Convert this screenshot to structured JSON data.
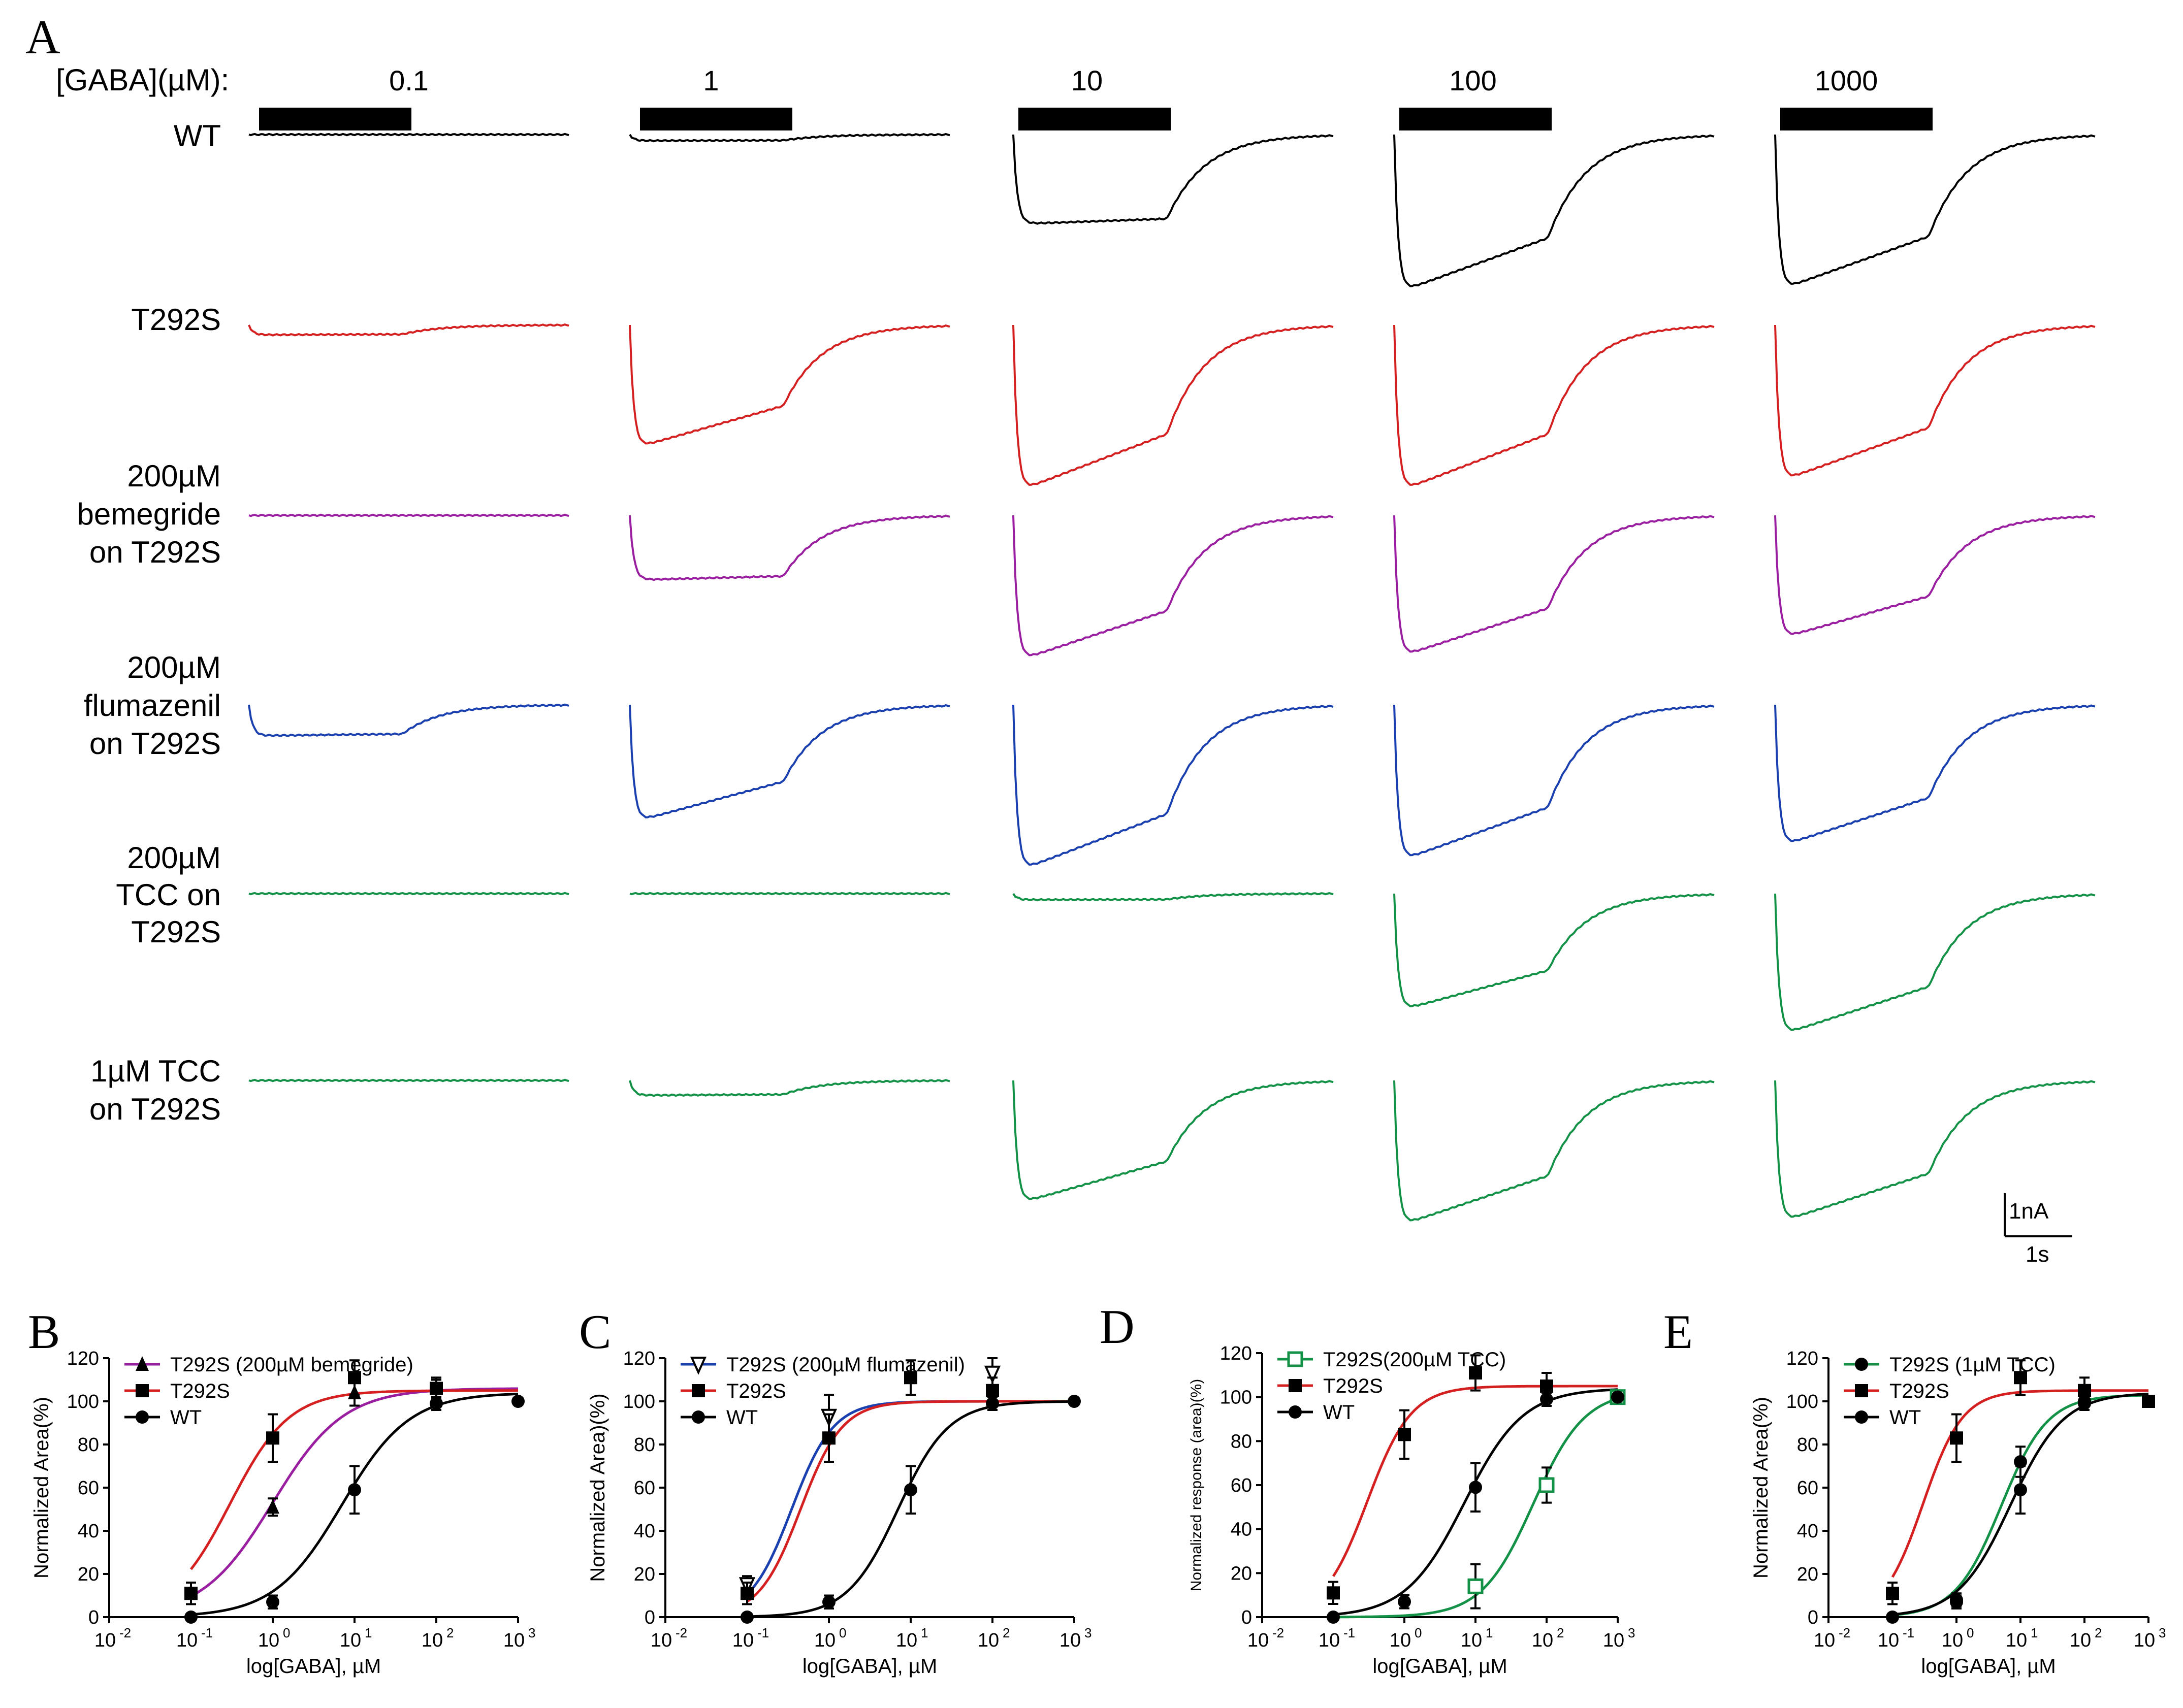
{
  "figure": {
    "panel_letters": {
      "A": "A",
      "B": "B",
      "C": "C",
      "D": "D",
      "E": "E"
    },
    "conc_prefix": "[GABA](µM):",
    "concentrations": [
      "0.1",
      "1",
      "10",
      "100",
      "1000"
    ],
    "row_labels": [
      [
        "WT"
      ],
      [
        "T292S"
      ],
      [
        "200µM",
        "bemegride",
        "on T292S"
      ],
      [
        "200µM",
        "flumazenil",
        "on T292S"
      ],
      [
        "200µM",
        "TCC on",
        "T292S"
      ],
      [
        "1µM TCC",
        "on T292S"
      ]
    ],
    "row_colors": [
      "#000000",
      "#d42020",
      "#9a1ea0",
      "#1a3fae",
      "#139247",
      "#139247"
    ],
    "trace_amplitudes": [
      [
        0.0,
        0.05,
        0.72,
        1.28,
        1.26
      ],
      [
        0.08,
        1.0,
        1.35,
        1.35,
        1.27
      ],
      [
        0.0,
        0.52,
        1.18,
        1.15,
        1.0
      ],
      [
        0.25,
        0.95,
        1.35,
        1.27,
        1.15
      ],
      [
        0.0,
        0.0,
        0.05,
        0.95,
        1.15
      ],
      [
        0.0,
        0.12,
        1.0,
        1.18,
        1.15
      ]
    ],
    "scale_bar": {
      "current": "1nA",
      "time": "1s"
    }
  },
  "chart_data": [
    {
      "panel": "B",
      "type": "scatter",
      "xlabel": "log[GABA], µM",
      "ylabel": "Normalized  Area(%)",
      "xlim": [
        0.01,
        1000
      ],
      "ylim": [
        0,
        120
      ],
      "xscale": "log",
      "ytick_labels": [
        "0",
        "20",
        "40",
        "60",
        "80",
        "100",
        "120"
      ],
      "series": [
        {
          "name": "T292S (200µM bemegride)",
          "marker": "triangle",
          "color": "#9a1ea0",
          "x": [
            1,
            10,
            100
          ],
          "y": [
            51,
            104,
            106
          ],
          "err": [
            4,
            6,
            4
          ],
          "ec50": 1.0,
          "hill": 1.0,
          "top": 106
        },
        {
          "name": "T292S",
          "marker": "square",
          "color": "#d42020",
          "x": [
            0.1,
            1,
            10,
            100
          ],
          "y": [
            11,
            83,
            111,
            106
          ],
          "err": [
            5,
            11,
            8,
            5
          ],
          "ec50": 0.3,
          "hill": 1.2,
          "top": 105
        },
        {
          "name": "WT",
          "marker": "circle",
          "color": "#000000",
          "x": [
            0.1,
            1,
            10,
            100,
            1000
          ],
          "y": [
            0,
            7,
            59,
            99,
            100
          ],
          "err": [
            1,
            3,
            11,
            3,
            1
          ],
          "ec50": 7,
          "hill": 1.05,
          "top": 104
        }
      ]
    },
    {
      "panel": "C",
      "type": "scatter",
      "xlabel": "log[GABA], µM",
      "ylabel": "Normalized  Area)(%)",
      "xlim": [
        0.01,
        1000
      ],
      "ylim": [
        0,
        120
      ],
      "xscale": "log",
      "ytick_labels": [
        "0",
        "20",
        "40",
        "60",
        "80",
        "100",
        "120"
      ],
      "series": [
        {
          "name": "T292S (200µM flumazenil)",
          "marker": "triangle-down-open",
          "color": "#1a3fae",
          "x": [
            0.1,
            1,
            100
          ],
          "y": [
            15,
            93,
            113
          ],
          "err": [
            4,
            10,
            7
          ],
          "ec50": 0.35,
          "hill": 1.7,
          "top": 100
        },
        {
          "name": "T292S",
          "marker": "square",
          "color": "#d42020",
          "x": [
            0.1,
            1,
            10,
            100
          ],
          "y": [
            11,
            83,
            111,
            105
          ],
          "err": [
            5,
            11,
            8,
            6
          ],
          "ec50": 0.45,
          "hill": 1.7,
          "top": 100
        },
        {
          "name": "WT",
          "marker": "circle",
          "color": "#000000",
          "x": [
            0.1,
            1,
            10,
            100,
            1000
          ],
          "y": [
            0,
            7,
            59,
            99,
            100
          ],
          "err": [
            1,
            3,
            11,
            3,
            1
          ],
          "ec50": 7,
          "hill": 1.4,
          "top": 100
        }
      ]
    },
    {
      "panel": "D",
      "type": "scatter",
      "xlabel": "log[GABA], µM",
      "ylabel": "Normalized  response (area)(%)",
      "xlim": [
        0.01,
        1000
      ],
      "ylim": [
        0,
        120
      ],
      "xscale": "log",
      "ytick_labels": [
        "0",
        "20",
        "40",
        "60",
        "80",
        "100",
        "120"
      ],
      "series": [
        {
          "name": "T292S(200µM TCC)",
          "marker": "square-open",
          "color": "#139247",
          "x": [
            10,
            100,
            1000
          ],
          "y": [
            14,
            60,
            100
          ],
          "err": [
            10,
            8,
            2
          ],
          "ec50": 65,
          "hill": 1.2,
          "top": 103
        },
        {
          "name": "T292S",
          "marker": "square",
          "color": "#d42020",
          "x": [
            0.1,
            1,
            10,
            100
          ],
          "y": [
            11,
            83,
            111,
            105
          ],
          "err": [
            5,
            11,
            8,
            6
          ],
          "ec50": 0.3,
          "hill": 1.4,
          "top": 105
        },
        {
          "name": "WT",
          "marker": "circle",
          "color": "#000000",
          "x": [
            0.1,
            1,
            10,
            100,
            1000
          ],
          "y": [
            0,
            7,
            59,
            99,
            100
          ],
          "err": [
            1,
            3,
            11,
            3,
            1
          ],
          "ec50": 7,
          "hill": 1.05,
          "top": 104
        }
      ]
    },
    {
      "panel": "E",
      "type": "scatter",
      "xlabel": "log[GABA], µM",
      "ylabel": "Normalized  Area(%)",
      "xlim": [
        0.01,
        1000
      ],
      "ylim": [
        0,
        120
      ],
      "xscale": "log",
      "ytick_labels": [
        "0",
        "20",
        "40",
        "60",
        "80",
        "100",
        "120"
      ],
      "series": [
        {
          "name": "T292S (1µM TCC)",
          "marker": "circle",
          "color": "#139247",
          "x": [
            1,
            10,
            100
          ],
          "y": [
            8,
            72,
            100
          ],
          "err": [
            3,
            7,
            4
          ],
          "ec50": 5,
          "hill": 1.2,
          "top": 103
        },
        {
          "name": "T292S",
          "marker": "square",
          "color": "#d42020",
          "x": [
            0.1,
            1,
            10,
            100,
            1000
          ],
          "y": [
            11,
            83,
            111,
            105,
            100
          ],
          "err": [
            5,
            11,
            8,
            6,
            1
          ],
          "ec50": 0.3,
          "hill": 1.4,
          "top": 105
        },
        {
          "name": "WT",
          "marker": "circle",
          "color": "#000000",
          "x": [
            0.1,
            1,
            10,
            100
          ],
          "y": [
            0,
            7,
            59,
            99
          ],
          "err": [
            1,
            3,
            11,
            3
          ],
          "ec50": 7,
          "hill": 1.05,
          "top": 104
        }
      ]
    }
  ]
}
